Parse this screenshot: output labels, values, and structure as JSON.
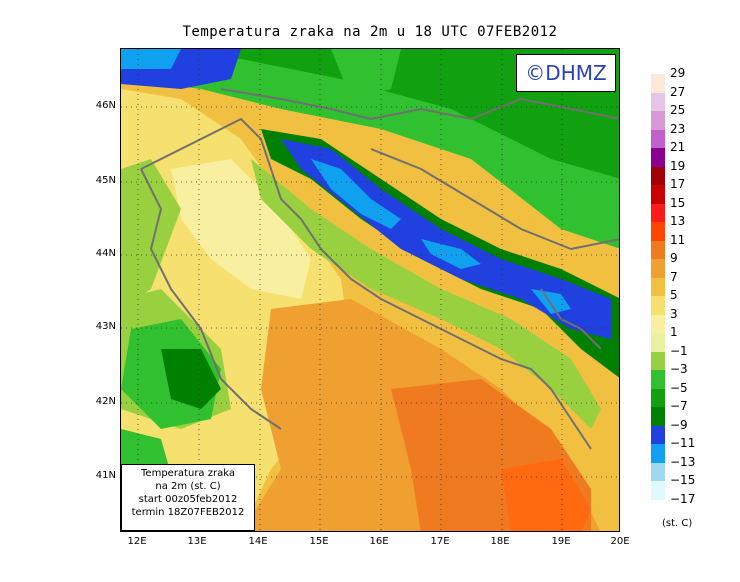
{
  "title": "Temperatura zraka na 2m u 18 UTC 07FEB2012",
  "logo": "©DHMZ",
  "info": {
    "line1": "Temperatura zraka",
    "line2": "na 2m (st. C)",
    "line3": "start 00z05feb2012",
    "line4": "termin 18Z07FEB2012"
  },
  "lat_labels": [
    "46N",
    "45N",
    "44N",
    "43N",
    "42N",
    "41N"
  ],
  "lon_labels": [
    "12E",
    "13E",
    "14E",
    "15E",
    "16E",
    "17E",
    "18E",
    "19E",
    "20E"
  ],
  "legend": {
    "unit": "(st. C)",
    "labels": [
      "29",
      "27",
      "25",
      "23",
      "21",
      "19",
      "17",
      "15",
      "13",
      "11",
      "9",
      "7",
      "5",
      "3",
      "1",
      "−1",
      "−3",
      "−5",
      "−7",
      "−9",
      "−11",
      "−13",
      "−15",
      "−17"
    ],
    "colors": [
      "#fde9d9",
      "#e6c4e6",
      "#d79ad7",
      "#c060c8",
      "#8c0090",
      "#a00000",
      "#c80000",
      "#ff1a1a",
      "#ff4500",
      "#f07a20",
      "#f0a030",
      "#f2c040",
      "#f5e070",
      "#f8f0a0",
      "#e8f2a0",
      "#98d040",
      "#30c030",
      "#10a010",
      "#008000",
      "#2040e0",
      "#10a0f0",
      "#a0d8f0",
      "#e0f8ff"
    ]
  }
}
